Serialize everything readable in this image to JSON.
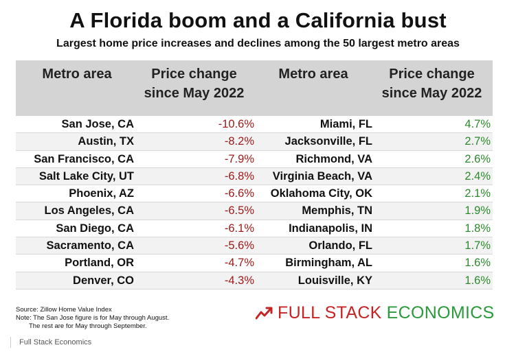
{
  "chart_data": {
    "type": "table",
    "title": "A Florida boom and a California bust",
    "subtitle": "Largest home price increases and declines among the 50 largest metro areas",
    "columns": [
      "Metro area",
      "Price change since May 2022",
      "Metro area",
      "Price change since May 2022"
    ],
    "header": {
      "col1": "Metro area",
      "col2_line1": "Price change",
      "col2_line2": "since May 2022",
      "col3": "Metro area",
      "col4_line1": "Price change",
      "col4_line2": "since May 2022"
    },
    "decliners": [
      {
        "metro": "San Jose, CA",
        "change": "-10.6%"
      },
      {
        "metro": "Austin, TX",
        "change": "-8.2%"
      },
      {
        "metro": "San Francisco, CA",
        "change": "-7.9%"
      },
      {
        "metro": "Salt Lake City, UT",
        "change": "-6.8%"
      },
      {
        "metro": "Phoenix, AZ",
        "change": "-6.6%"
      },
      {
        "metro": "Los Angeles, CA",
        "change": "-6.5%"
      },
      {
        "metro": "San Diego, CA",
        "change": "-6.1%"
      },
      {
        "metro": "Sacramento, CA",
        "change": "-5.6%"
      },
      {
        "metro": "Portland, OR",
        "change": "-4.7%"
      },
      {
        "metro": "Denver, CO",
        "change": "-4.3%"
      }
    ],
    "gainers": [
      {
        "metro": "Miami, FL",
        "change": "4.7%"
      },
      {
        "metro": "Jacksonville, FL",
        "change": "2.7%"
      },
      {
        "metro": "Richmond, VA",
        "change": "2.6%"
      },
      {
        "metro": "Virginia Beach, VA",
        "change": "2.4%"
      },
      {
        "metro": "Oklahoma City, OK",
        "change": "2.1%"
      },
      {
        "metro": "Memphis, TN",
        "change": "1.9%"
      },
      {
        "metro": "Indianapolis, IN",
        "change": "1.8%"
      },
      {
        "metro": "Orlando, FL",
        "change": "1.7%"
      },
      {
        "metro": "Birmingham, AL",
        "change": "1.6%"
      },
      {
        "metro": "Louisville, KY",
        "change": "1.6%"
      }
    ],
    "colors": {
      "decline": "#a01a1a",
      "increase": "#2b8a2b",
      "header_bg": "#d4d4d4"
    }
  },
  "notes": {
    "source": "Source: Zillow Home Value Index",
    "note1": "Note: The San Jose figure  is for May through August.",
    "note2": "The rest are for May through September."
  },
  "brand": {
    "part1": "FULL STACK",
    "part2": "ECONOMICS",
    "logo_icon": "trend-up-arrow-icon"
  },
  "caption": "Full Stack Economics"
}
